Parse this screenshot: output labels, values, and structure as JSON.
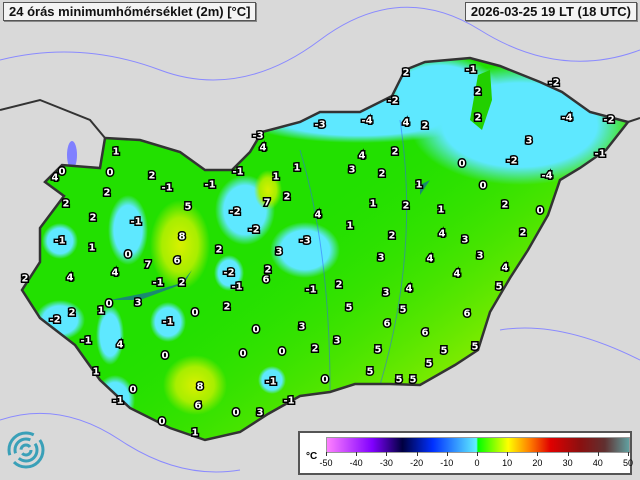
{
  "header": {
    "title": "24 órás minimumhőmérséklet (2m) [°C]",
    "datetime": "2026-03-25 19 LT (18 UTC)"
  },
  "map": {
    "variable": "minimum temperature",
    "colors": {
      "base_green": "#22e000",
      "cold_cyan": "#5ee8ff",
      "warm_yellow": "#b8f000",
      "lake": "#1a8a70"
    },
    "station_values": [
      "1",
      "0",
      "4",
      "0",
      "2",
      "-1",
      "2",
      "2",
      "2",
      "-1",
      "5",
      "-1",
      "8",
      "1",
      "0",
      "7",
      "6",
      "4",
      "4",
      "2",
      "-1",
      "2",
      "0",
      "1",
      "3",
      "2",
      "-2",
      "-1",
      "0",
      "2",
      "-1",
      "4",
      "0",
      "1",
      "0",
      "8",
      "-1",
      "6",
      "0",
      "1",
      "0",
      "3",
      "-1",
      "-3",
      "4",
      "-1",
      "-1",
      "1",
      "1",
      "7",
      "2",
      "-2",
      "-2",
      "2",
      "-2",
      "-1",
      "2",
      "6",
      "3",
      "4",
      "-3",
      "1",
      "-1",
      "2",
      "0",
      "0",
      "0",
      "3",
      "2",
      "3",
      "-1",
      "0",
      "5",
      "-3",
      "-4",
      "2",
      "-1",
      "2",
      "2",
      "-2",
      "4",
      "2",
      "4",
      "3",
      "2",
      "2",
      "0",
      "1",
      "1",
      "2",
      "1",
      "0",
      "2",
      "0",
      "-2",
      "-4",
      "-2",
      "3",
      "-2",
      "-4",
      "-1",
      "2",
      "4",
      "3",
      "3",
      "4",
      "3",
      "2",
      "4",
      "4",
      "3",
      "4",
      "5",
      "5",
      "6",
      "6",
      "6",
      "5",
      "5",
      "5",
      "5",
      "5",
      "5",
      "5"
    ]
  },
  "legend": {
    "unit": "°C",
    "ticks": [
      "-50",
      "-40",
      "-30",
      "-20",
      "-10",
      "0",
      "10",
      "20",
      "30",
      "40",
      "50"
    ],
    "range": [
      -50,
      50
    ]
  }
}
